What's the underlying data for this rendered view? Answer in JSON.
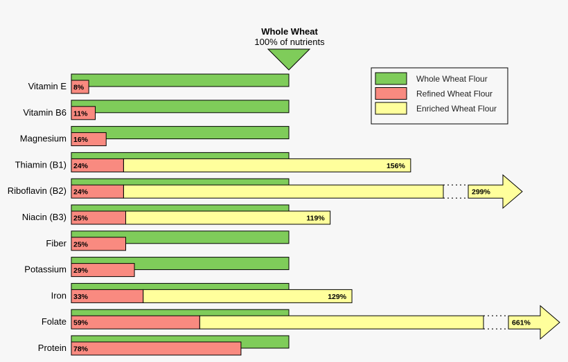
{
  "colors": {
    "whole": "#7fcc5a",
    "refined": "#f98a80",
    "enriched": "#ffff9c",
    "stroke": "#000000"
  },
  "header": {
    "title": "Whole Wheat",
    "subtitle": "100% of nutrients"
  },
  "legend": {
    "items": [
      {
        "label": "Whole Wheat Flour",
        "color": "#7fcc5a"
      },
      {
        "label": "Refined Wheat Flour",
        "color": "#f98a80"
      },
      {
        "label": "Enriched Wheat Flour",
        "color": "#ffff9c"
      }
    ]
  },
  "chart_data": {
    "type": "bar",
    "orientation": "horizontal",
    "title": "Whole Wheat",
    "subtitle": "100% of nutrients",
    "unit": "%",
    "categories": [
      "Vitamin E",
      "Vitamin B6",
      "Magnesium",
      "Thiamin (B1)",
      "Riboflavin (B2)",
      "Niacin (B3)",
      "Fiber",
      "Potassium",
      "Iron",
      "Folate",
      "Protein"
    ],
    "series": [
      {
        "name": "Whole Wheat Flour",
        "values": [
          100,
          100,
          100,
          100,
          100,
          100,
          100,
          100,
          100,
          100,
          100
        ]
      },
      {
        "name": "Refined Wheat Flour",
        "values": [
          8,
          11,
          16,
          24,
          24,
          25,
          25,
          29,
          33,
          59,
          78
        ],
        "labels": [
          "8%",
          "11%",
          "16%",
          "24%",
          "24%",
          "25%",
          "25%",
          "29%",
          "33%",
          "59%",
          "78%"
        ]
      },
      {
        "name": "Enriched Wheat Flour",
        "values": [
          null,
          null,
          null,
          156,
          299,
          119,
          null,
          null,
          129,
          661,
          null
        ],
        "labels": [
          null,
          null,
          null,
          "156%",
          "299%",
          "119%",
          null,
          null,
          "129%",
          "661%",
          null
        ],
        "truncated": [
          false,
          false,
          false,
          false,
          true,
          false,
          false,
          false,
          false,
          true,
          false
        ]
      }
    ],
    "reference": {
      "value": 100,
      "label": "100% of nutrients"
    },
    "legend_position": "top-right",
    "grid": false
  }
}
